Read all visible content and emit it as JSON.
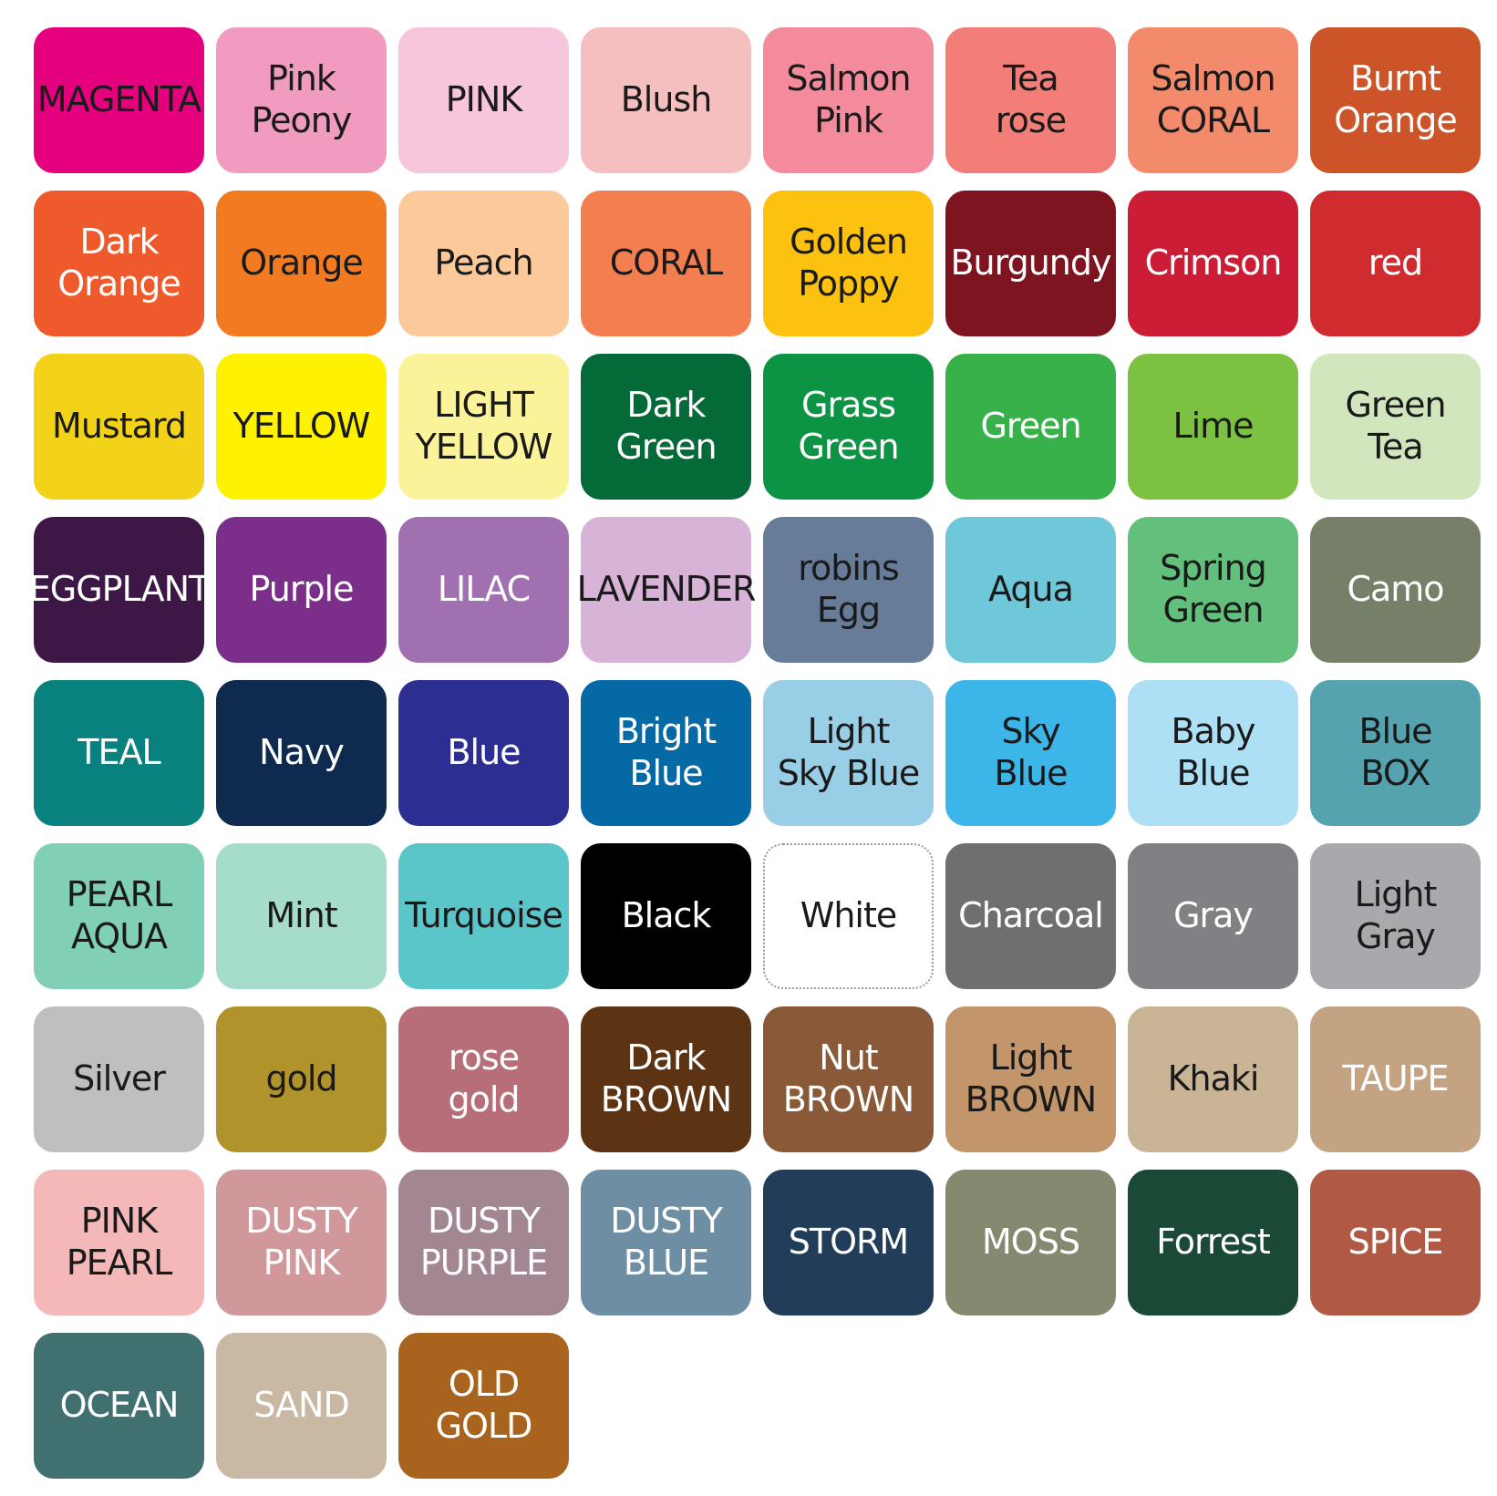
{
  "swatches": [
    {
      "label": "MAGENTA",
      "color": "#e5007e",
      "text": "#1a1a1a"
    },
    {
      "label": "Pink\nPeony",
      "color": "#f29bc1",
      "text": "#1a1a1a"
    },
    {
      "label": "PINK",
      "color": "#f7c5dc",
      "text": "#1a1a1a"
    },
    {
      "label": "Blush",
      "color": "#f5bfc0",
      "text": "#1a1a1a"
    },
    {
      "label": "Salmon\nPink",
      "color": "#f38b9d",
      "text": "#1a1a1a"
    },
    {
      "label": "Tea\nrose",
      "color": "#f27e77",
      "text": "#1a1a1a"
    },
    {
      "label": "Salmon\nCORAL",
      "color": "#f38a6c",
      "text": "#1a1a1a"
    },
    {
      "label": "Burnt\nOrange",
      "color": "#cc5428",
      "text": "#ffffff"
    },
    {
      "label": "Dark\nOrange",
      "color": "#ef5a2c",
      "text": "#ffffff"
    },
    {
      "label": "Orange",
      "color": "#f27b21",
      "text": "#1a1a1a"
    },
    {
      "label": "Peach",
      "color": "#fcc99a",
      "text": "#1a1a1a"
    },
    {
      "label": "CORAL",
      "color": "#f37f50",
      "text": "#1a1a1a"
    },
    {
      "label": "Golden\nPoppy",
      "color": "#fcc20f",
      "text": "#1a1a1a"
    },
    {
      "label": "Burgundy",
      "color": "#7f1421",
      "text": "#ffffff"
    },
    {
      "label": "Crimson",
      "color": "#cc1d36",
      "text": "#ffffff"
    },
    {
      "label": "red",
      "color": "#d02b2f",
      "text": "#ffffff"
    },
    {
      "label": "Mustard",
      "color": "#f3d319",
      "text": "#1a1a1a"
    },
    {
      "label": "YELLOW",
      "color": "#fff200",
      "text": "#1a1a1a"
    },
    {
      "label": "LIGHT\nYELLOW",
      "color": "#fbf39a",
      "text": "#1a1a1a"
    },
    {
      "label": "Dark\nGreen",
      "color": "#046a38",
      "text": "#ffffff"
    },
    {
      "label": "Grass\nGreen",
      "color": "#0c9444",
      "text": "#ffffff"
    },
    {
      "label": "Green",
      "color": "#39b14a",
      "text": "#ffffff"
    },
    {
      "label": "Lime",
      "color": "#7dc142",
      "text": "#1a1a1a"
    },
    {
      "label": "Green\nTea",
      "color": "#d1e6bd",
      "text": "#1a1a1a"
    },
    {
      "label": "EGGPLANT",
      "color": "#3d1846",
      "text": "#ffffff"
    },
    {
      "label": "Purple",
      "color": "#7c2e8b",
      "text": "#ffffff"
    },
    {
      "label": "LILAC",
      "color": "#a070b0",
      "text": "#ffffff"
    },
    {
      "label": "LAVENDER",
      "color": "#d6b3d7",
      "text": "#1a1a1a"
    },
    {
      "label": "robins\nEgg",
      "color": "#677c99",
      "text": "#1a1a1a"
    },
    {
      "label": "Aqua",
      "color": "#6ec8da",
      "text": "#1a1a1a"
    },
    {
      "label": "Spring\nGreen",
      "color": "#63bf7c",
      "text": "#1a1a1a"
    },
    {
      "label": "Camo",
      "color": "#767f68",
      "text": "#ffffff"
    },
    {
      "label": "TEAL",
      "color": "#08817f",
      "text": "#ffffff"
    },
    {
      "label": "Navy",
      "color": "#0e2a4f",
      "text": "#ffffff"
    },
    {
      "label": "Blue",
      "color": "#2c2f91",
      "text": "#ffffff"
    },
    {
      "label": "Bright\nBlue",
      "color": "#0569a6",
      "text": "#ffffff"
    },
    {
      "label": "Light\nSky Blue",
      "color": "#98cfe6",
      "text": "#1a1a1a"
    },
    {
      "label": "Sky\nBlue",
      "color": "#3cb5e8",
      "text": "#1a1a1a"
    },
    {
      "label": "Baby\nBlue",
      "color": "#ade0f5",
      "text": "#1a1a1a"
    },
    {
      "label": "Blue\nBOX",
      "color": "#56a3b0",
      "text": "#1a1a1a"
    },
    {
      "label": "PEARL\nAQUA",
      "color": "#80cfb6",
      "text": "#1a1a1a"
    },
    {
      "label": "Mint",
      "color": "#a6dccb",
      "text": "#1a1a1a"
    },
    {
      "label": "Turquoise",
      "color": "#5bc6c9",
      "text": "#1a1a1a"
    },
    {
      "label": "Black",
      "color": "#000000",
      "text": "#ffffff"
    },
    {
      "label": "White",
      "color": "#ffffff",
      "text": "#1a1a1a"
    },
    {
      "label": "Charcoal",
      "color": "#6e6f71",
      "text": "#ffffff"
    },
    {
      "label": "Gray",
      "color": "#808184",
      "text": "#ffffff"
    },
    {
      "label": "Light\nGray",
      "color": "#a8a9ac",
      "text": "#1a1a1a"
    },
    {
      "label": "Silver",
      "color": "#bfbfbf",
      "text": "#1a1a1a"
    },
    {
      "label": "gold",
      "color": "#b0932b",
      "text": "#1a1a1a"
    },
    {
      "label": "rose\ngold",
      "color": "#b76e79",
      "text": "#ffffff"
    },
    {
      "label": "Dark\nBROWN",
      "color": "#5c3414",
      "text": "#ffffff"
    },
    {
      "label": "Nut\nBROWN",
      "color": "#8a5a38",
      "text": "#ffffff"
    },
    {
      "label": "Light\nBROWN",
      "color": "#c2966a",
      "text": "#1a1a1a"
    },
    {
      "label": "Khaki",
      "color": "#c9b496",
      "text": "#1a1a1a"
    },
    {
      "label": "TAUPE",
      "color": "#c4a383",
      "text": "#ffffff"
    },
    {
      "label": "PINK\nPEARL",
      "color": "#f5b8b8",
      "text": "#1a1a1a"
    },
    {
      "label": "DUSTY\nPINK",
      "color": "#d1989c",
      "text": "#ffffff"
    },
    {
      "label": "DUSTY\nPURPLE",
      "color": "#a28793",
      "text": "#ffffff"
    },
    {
      "label": "DUSTY\nBLUE",
      "color": "#6e8ea3",
      "text": "#ffffff"
    },
    {
      "label": "STORM",
      "color": "#213d59",
      "text": "#ffffff"
    },
    {
      "label": "MOSS",
      "color": "#838a70",
      "text": "#ffffff"
    },
    {
      "label": "Forrest",
      "color": "#1a4a36",
      "text": "#ffffff"
    },
    {
      "label": "SPICE",
      "color": "#b05a45",
      "text": "#ffffff"
    },
    {
      "label": "OCEAN",
      "color": "#417071",
      "text": "#ffffff"
    },
    {
      "label": "SAND",
      "color": "#c8b8a4",
      "text": "#ffffff"
    },
    {
      "label": "OLD\nGOLD",
      "color": "#a8641f",
      "text": "#ffffff"
    }
  ]
}
